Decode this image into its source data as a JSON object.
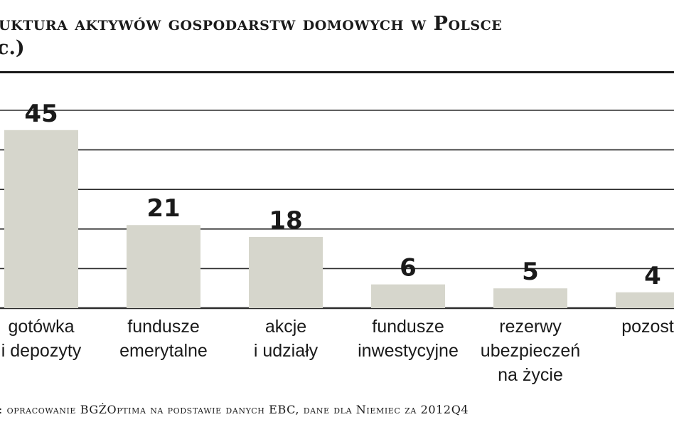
{
  "header": {
    "title": "uktura aktywów gospodarstw domowych w Polsce",
    "subtitle": "c.)"
  },
  "footer": {
    "source": ": opracowanie BGŻOptima na podstawie danych EBC, dane dla Niemiec za 2012Q4"
  },
  "colors": {
    "bar": "#d6d6cc",
    "grid": "#2a2a2a",
    "text": "#1a1a1a"
  },
  "chart_data": {
    "type": "bar",
    "title": "uktura aktywów gospodarstw domowych w Polsce",
    "xlabel": "",
    "ylabel": "",
    "ylim": [
      0,
      50
    ],
    "grid": true,
    "categories": [
      [
        "gotówka",
        "i depozyty"
      ],
      [
        "fundusze",
        "emerytalne"
      ],
      [
        "akcje",
        "i udziały"
      ],
      [
        "fundusze",
        "inwestycyjne"
      ],
      [
        "rezerwy",
        "ubezpieczeń",
        "na życie"
      ],
      [
        "pozosta"
      ]
    ],
    "values": [
      45,
      21,
      18,
      6,
      5,
      4
    ],
    "data_labels": [
      "45",
      "21",
      "18",
      "6",
      "5",
      "4"
    ]
  }
}
